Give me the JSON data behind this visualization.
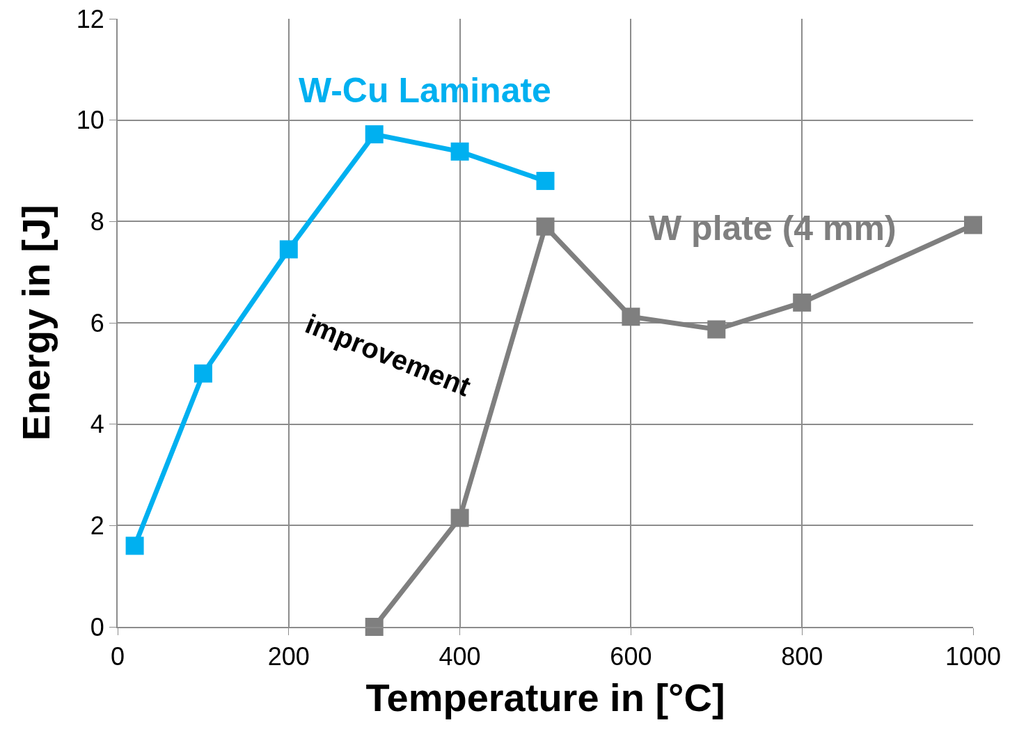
{
  "chart_data": {
    "type": "line",
    "xlabel": "Temperature in [°C]",
    "ylabel": "Energy in [J]",
    "series": [
      {
        "name": "W-Cu Laminate",
        "color": "#00b0f0",
        "x": [
          20,
          100,
          200,
          300,
          400,
          500
        ],
        "values": [
          1.6,
          5.0,
          7.45,
          9.72,
          9.38,
          8.8
        ]
      },
      {
        "name": "W plate (4 mm)",
        "color": "#7f7f7f",
        "x": [
          300,
          400,
          500,
          600,
          700,
          800,
          1000
        ],
        "values": [
          0,
          2.15,
          7.9,
          6.12,
          5.87,
          6.4,
          7.93
        ]
      }
    ],
    "annotations": [
      "improvement"
    ],
    "xlim": [
      0,
      1000
    ],
    "xticks": [
      0,
      200,
      400,
      600,
      800,
      1000
    ],
    "ylim": [
      0,
      12
    ],
    "yticks": [
      0,
      2,
      4,
      6,
      8,
      10,
      12
    ],
    "grid": true,
    "legend": false,
    "marker": "square",
    "line_style": "solid"
  }
}
